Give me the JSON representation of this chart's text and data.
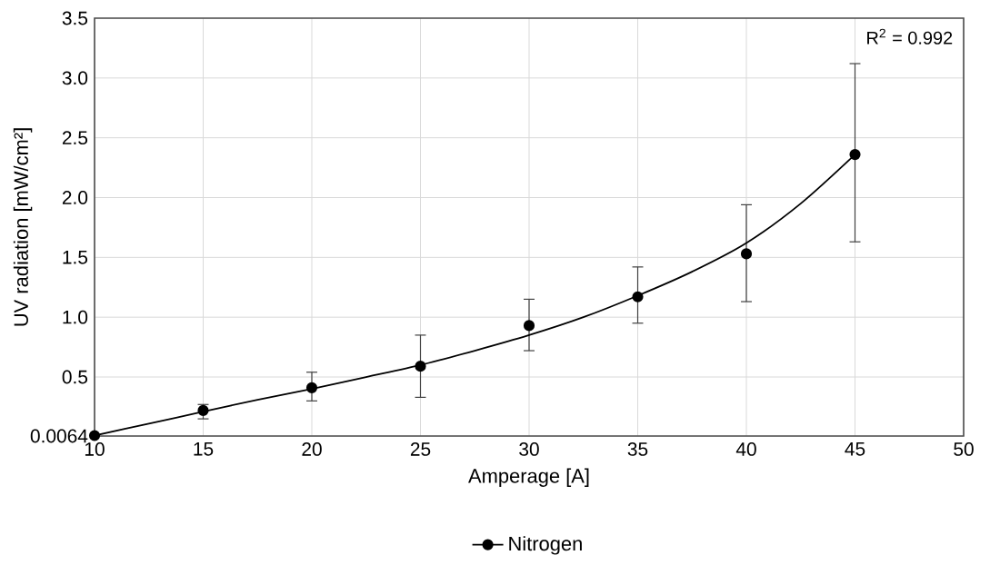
{
  "chart_data": {
    "type": "scatter",
    "xlabel": "Amperage [A]",
    "ylabel": "UV radiation [mW/cm²]",
    "annotations": [
      "R$^{2}$ = 0.992"
    ],
    "xlim": [
      10,
      50
    ],
    "xticks": [
      10,
      15,
      20,
      25,
      30,
      35,
      40,
      45,
      50
    ],
    "ylim": [
      0.0064,
      3.5
    ],
    "yticks": [
      0.0064,
      0.5,
      {
        "value": 1,
        "label": "1.0"
      },
      1.5,
      {
        "value": 2,
        "label": "2.0"
      },
      2.5,
      {
        "value": 3,
        "label": "3.0"
      },
      3.5
    ],
    "grid": true,
    "legend": "bottom",
    "marker": "circle",
    "series": [
      {
        "name": "Nitrogen",
        "color": "#000000",
        "x": [
          10,
          15,
          20,
          25,
          30,
          35,
          40,
          45
        ],
        "values": [
          0.01,
          0.22,
          0.41,
          0.59,
          0.93,
          1.17,
          1.53,
          2.36
        ],
        "errors": [
          null,
          [
            0.15,
            0.27
          ],
          [
            0.3,
            0.54
          ],
          [
            0.33,
            0.85
          ],
          [
            0.72,
            1.15
          ],
          [
            0.95,
            1.42
          ],
          [
            1.13,
            1.94
          ],
          [
            1.63,
            3.12
          ]
        ]
      },
      {
        "type": "line",
        "color": "#000000",
        "marker": "none",
        "x": [
          10,
          12.5,
          15,
          17.5,
          20,
          22.5,
          25,
          27.5,
          30,
          32.5,
          35,
          37.5,
          40,
          42.5,
          45
        ],
        "values": [
          0.01,
          0.11,
          0.21,
          0.31,
          0.4,
          0.5,
          0.6,
          0.72,
          0.85,
          1.0,
          1.18,
          1.38,
          1.62,
          1.95,
          2.36
        ]
      }
    ]
  }
}
